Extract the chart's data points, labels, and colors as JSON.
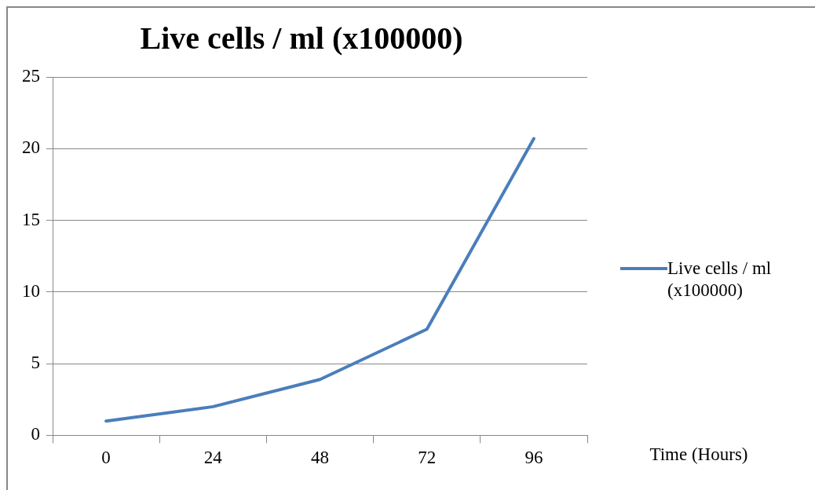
{
  "chart_data": {
    "type": "line",
    "title": "Live cells / ml (x100000)",
    "xlabel": "Time (Hours)",
    "categories": [
      "0",
      "24",
      "48",
      "72",
      "96"
    ],
    "series": [
      {
        "name": "Live cells / ml (x100000)",
        "color": "#4a7ebb",
        "values": [
          1,
          2,
          3.9,
          7.4,
          20.7
        ]
      }
    ],
    "ylim": [
      0,
      25
    ],
    "yticks": [
      0,
      5,
      10,
      15,
      20,
      25
    ],
    "grid": "y",
    "legend": "right",
    "marker": "none",
    "line_style": "solid"
  }
}
